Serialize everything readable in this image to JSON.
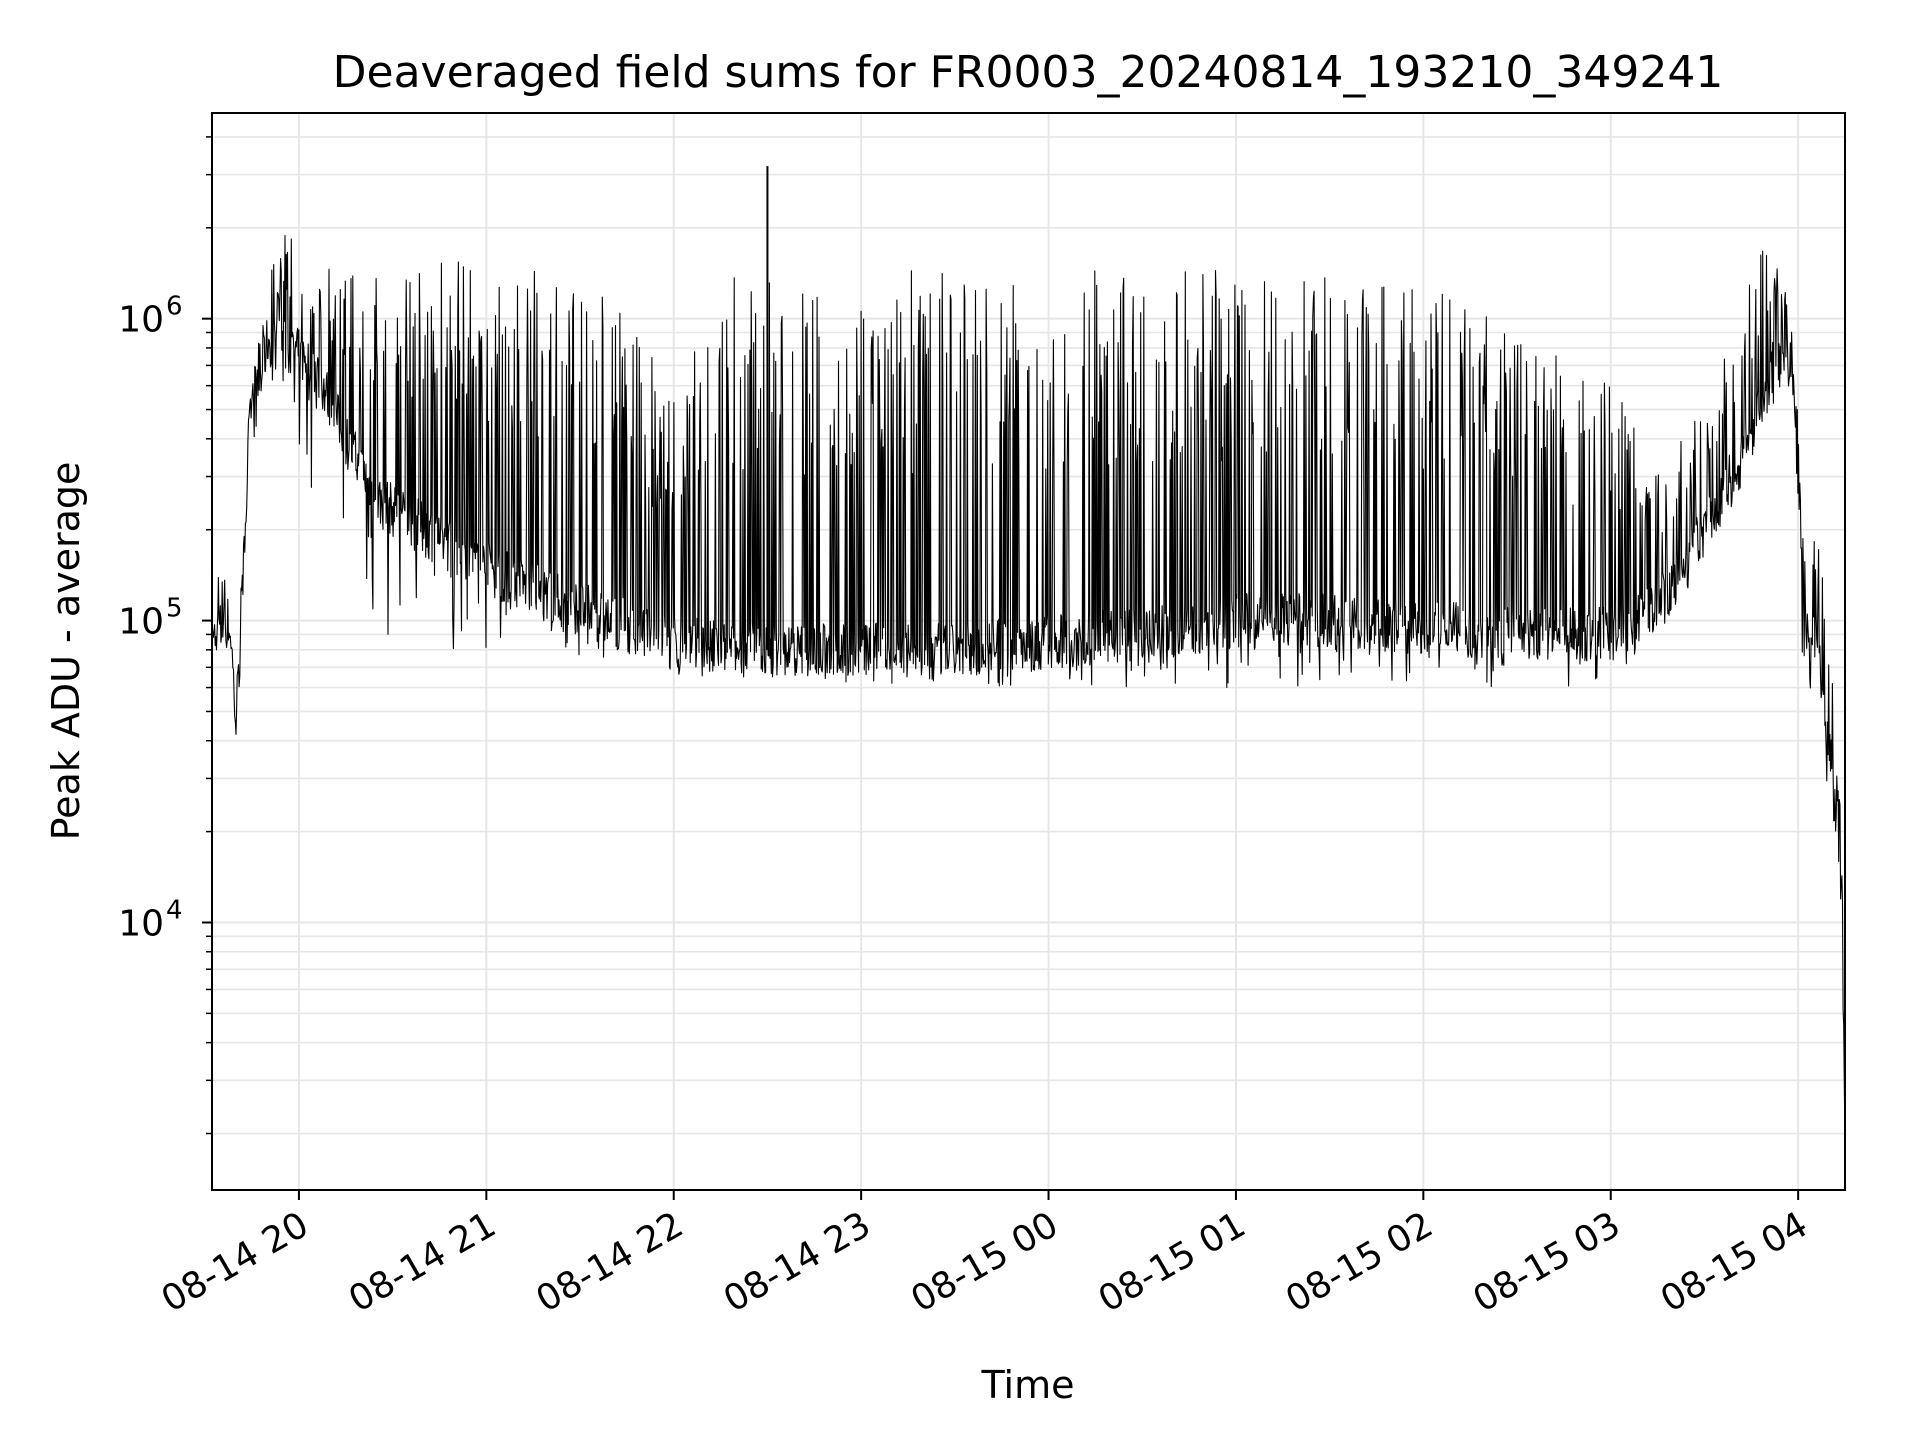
{
  "chart_data": {
    "type": "line",
    "title": "Deaveraged field sums for FR0003_20240814_193210_349241",
    "xlabel": "Time",
    "ylabel": "Peak ADU - average",
    "yscale": "log",
    "ylim": [
      1300,
      4800000
    ],
    "xlim": [
      "2024-08-14 19:32:10",
      "2024-08-15 04:15:00"
    ],
    "grid": true,
    "line_color": "#000000",
    "x_ticks": [
      "08-14 20",
      "08-14 21",
      "08-14 22",
      "08-14 23",
      "08-15 00",
      "08-15 01",
      "08-15 02",
      "08-15 03",
      "08-15 04"
    ],
    "x_tick_times": [
      "2024-08-14 20:00",
      "2024-08-14 21:00",
      "2024-08-14 22:00",
      "2024-08-14 23:00",
      "2024-08-15 00:00",
      "2024-08-15 01:00",
      "2024-08-15 02:00",
      "2024-08-15 03:00",
      "2024-08-15 04:00"
    ],
    "y_ticks": [
      {
        "value": 10000,
        "base": "10",
        "exp": "4"
      },
      {
        "value": 100000,
        "base": "10",
        "exp": "5"
      },
      {
        "value": 1000000,
        "base": "10",
        "exp": "6"
      }
    ],
    "series": [
      {
        "x": [
          "2024-08-14 19:32",
          "2024-08-14 19:38",
          "2024-08-14 19:40",
          "2024-08-14 19:44",
          "2024-08-14 19:50",
          "2024-08-14 19:56",
          "2024-08-14 20:05",
          "2024-08-14 20:15",
          "2024-08-14 20:25",
          "2024-08-14 20:40",
          "2024-08-14 21:00",
          "2024-08-14 21:20",
          "2024-08-14 21:40",
          "2024-08-14 22:00",
          "2024-08-14 22:20",
          "2024-08-14 22:40",
          "2024-08-14 23:00",
          "2024-08-14 23:30",
          "2024-08-15 00:00",
          "2024-08-15 00:30",
          "2024-08-15 01:00",
          "2024-08-15 01:30",
          "2024-08-15 02:00",
          "2024-08-15 02:30",
          "2024-08-15 03:00",
          "2024-08-15 03:15",
          "2024-08-15 03:30",
          "2024-08-15 03:45",
          "2024-08-15 03:52",
          "2024-08-15 03:58",
          "2024-08-15 04:02",
          "2024-08-15 04:06",
          "2024-08-15 04:10",
          "2024-08-15 04:14",
          "2024-08-15 04:15"
        ],
        "high": [
          150000,
          180000,
          60000,
          500000,
          1500000,
          2000000,
          1500000,
          1500000,
          1600000,
          1600000,
          1600000,
          1500000,
          1200000,
          600000,
          1500000,
          1400000,
          1400000,
          1500000,
          1400000,
          1500000,
          1500000,
          1400000,
          1300000,
          900000,
          600000,
          350000,
          500000,
          1400000,
          2000000,
          1000000,
          200000,
          200000,
          90000,
          20000,
          5000
        ],
        "low": [
          80000,
          80000,
          38000,
          300000,
          600000,
          500000,
          250000,
          150000,
          90000,
          80000,
          80000,
          70000,
          70000,
          65000,
          65000,
          65000,
          60000,
          60000,
          60000,
          60000,
          60000,
          60000,
          60000,
          60000,
          60000,
          90000,
          150000,
          300000,
          500000,
          600000,
          50000,
          40000,
          25000,
          8000,
          1500
        ],
        "base": [
          90000,
          100000,
          42000,
          400000,
          850000,
          800000,
          700000,
          400000,
          250000,
          200000,
          150000,
          120000,
          100000,
          85000,
          80000,
          80000,
          80000,
          80000,
          85000,
          90000,
          100000,
          100000,
          95000,
          90000,
          90000,
          110000,
          200000,
          400000,
          700000,
          750000,
          100000,
          90000,
          40000,
          12000,
          1800
        ]
      }
    ],
    "spikes": [
      {
        "x": "2024-08-14 22:30",
        "y": 3200000
      }
    ]
  }
}
